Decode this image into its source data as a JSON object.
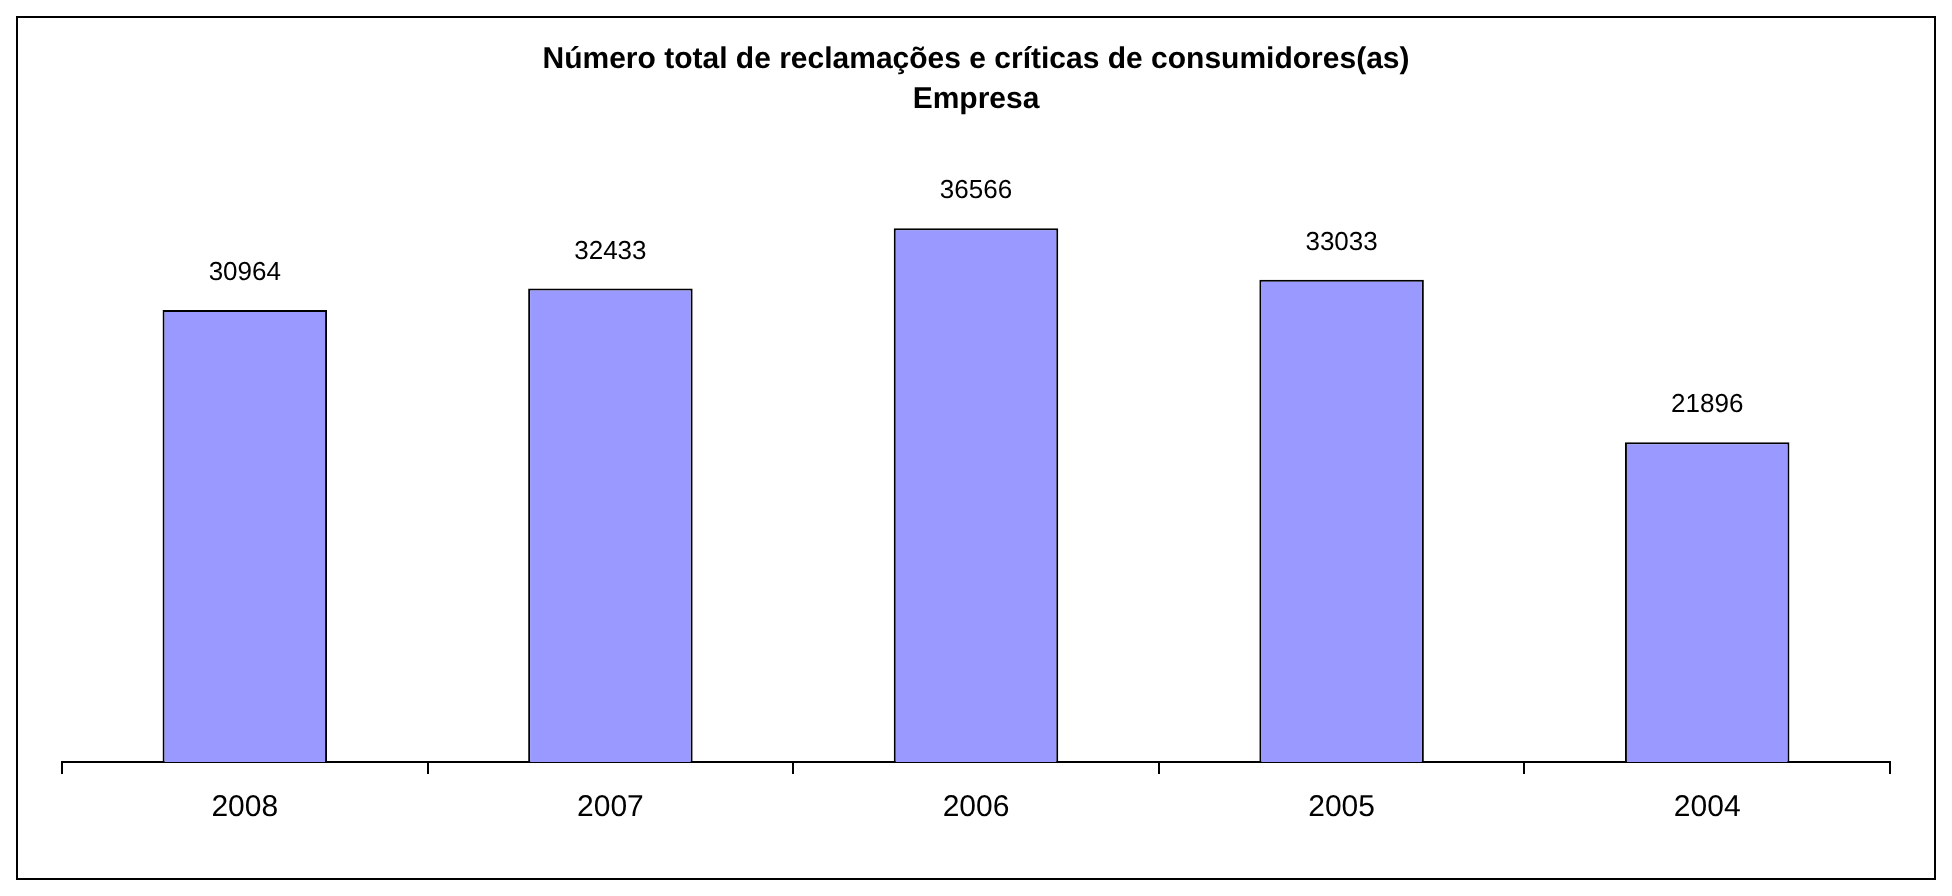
{
  "chart_data": {
    "type": "bar",
    "title": "Número total de reclamações e críticas de consumidores(as)",
    "subtitle": "Empresa",
    "categories": [
      "2008",
      "2007",
      "2006",
      "2005",
      "2004"
    ],
    "values": [
      30964,
      32433,
      36566,
      33033,
      21896
    ],
    "color": "#9999ff",
    "data_labels": true,
    "grid": false,
    "legend": false
  }
}
